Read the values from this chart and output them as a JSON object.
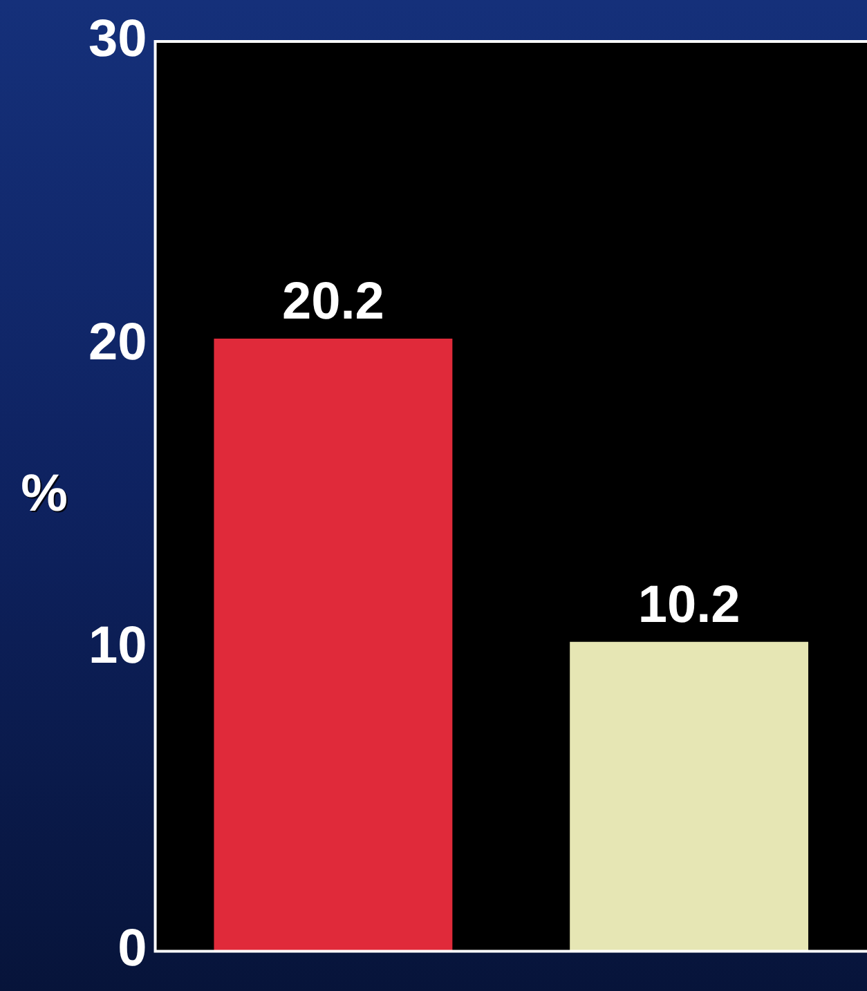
{
  "chart_data": {
    "type": "bar",
    "ylabel": "%",
    "categories": [
      null,
      null
    ],
    "values": [
      20.2,
      10.2
    ],
    "colors": [
      "#e02a3a",
      "#e6e6b4"
    ],
    "ylim": [
      0,
      30
    ],
    "yticks": [
      0,
      10,
      20,
      30
    ],
    "data_labels": true,
    "grid": false,
    "legend": false
  }
}
